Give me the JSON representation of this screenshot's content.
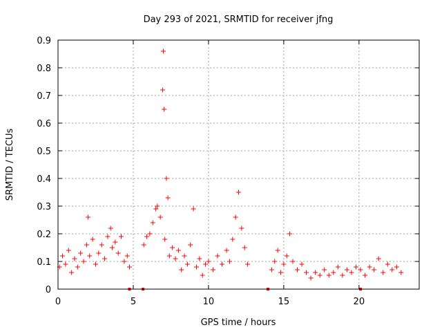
{
  "chart_data": {
    "type": "scatter",
    "title": "Day 293 of 2021, SRMTID for receiver jfng",
    "xlabel": "GPS time / hours",
    "ylabel": "SRMTID / TECUs",
    "xlim": [
      0,
      24
    ],
    "ylim": [
      0,
      0.9
    ],
    "x_ticks": [
      0,
      5,
      10,
      15,
      20
    ],
    "x_tick_labels": [
      "0",
      "5",
      "10",
      "15",
      "20"
    ],
    "y_ticks": [
      0,
      0.1,
      0.2,
      0.3,
      0.4,
      0.5,
      0.6,
      0.7,
      0.8,
      0.9
    ],
    "y_tick_labels": [
      "0",
      "0.1",
      "0.2",
      "0.3",
      "0.4",
      "0.5",
      "0.6",
      "0.7",
      "0.8",
      "0.9"
    ],
    "grid": true,
    "series_color": "#ff0000",
    "marker": "+",
    "x_range_covered": [
      0,
      22.8
    ],
    "data_gaps_hours": [
      [
        4.9,
        5.6
      ],
      [
        12.7,
        14.1
      ]
    ],
    "points": [
      [
        0.1,
        0.08
      ],
      [
        0.3,
        0.12
      ],
      [
        0.5,
        0.09
      ],
      [
        0.7,
        0.14
      ],
      [
        0.9,
        0.06
      ],
      [
        1.1,
        0.11
      ],
      [
        1.3,
        0.08
      ],
      [
        1.5,
        0.13
      ],
      [
        1.7,
        0.1
      ],
      [
        1.9,
        0.16
      ],
      [
        2.0,
        0.26
      ],
      [
        2.1,
        0.12
      ],
      [
        2.3,
        0.18
      ],
      [
        2.5,
        0.09
      ],
      [
        2.7,
        0.13
      ],
      [
        2.9,
        0.16
      ],
      [
        3.1,
        0.11
      ],
      [
        3.3,
        0.19
      ],
      [
        3.5,
        0.22
      ],
      [
        3.6,
        0.15
      ],
      [
        3.8,
        0.17
      ],
      [
        4.0,
        0.13
      ],
      [
        4.2,
        0.19
      ],
      [
        4.4,
        0.1
      ],
      [
        4.6,
        0.12
      ],
      [
        4.75,
        0.08
      ],
      [
        5.7,
        0.16
      ],
      [
        5.9,
        0.19
      ],
      [
        6.1,
        0.2
      ],
      [
        6.3,
        0.24
      ],
      [
        6.5,
        0.29
      ],
      [
        6.6,
        0.3
      ],
      [
        6.8,
        0.26
      ],
      [
        6.95,
        0.72
      ],
      [
        7.0,
        0.86
      ],
      [
        7.05,
        0.65
      ],
      [
        7.1,
        0.18
      ],
      [
        7.2,
        0.4
      ],
      [
        7.3,
        0.33
      ],
      [
        7.4,
        0.12
      ],
      [
        7.6,
        0.15
      ],
      [
        7.8,
        0.11
      ],
      [
        8.0,
        0.14
      ],
      [
        8.2,
        0.07
      ],
      [
        8.4,
        0.12
      ],
      [
        8.6,
        0.09
      ],
      [
        8.8,
        0.16
      ],
      [
        9.0,
        0.29
      ],
      [
        9.2,
        0.08
      ],
      [
        9.4,
        0.11
      ],
      [
        9.6,
        0.05
      ],
      [
        9.8,
        0.09
      ],
      [
        10.0,
        0.1
      ],
      [
        10.3,
        0.07
      ],
      [
        10.6,
        0.12
      ],
      [
        10.9,
        0.09
      ],
      [
        11.2,
        0.14
      ],
      [
        11.4,
        0.1
      ],
      [
        11.6,
        0.18
      ],
      [
        11.8,
        0.26
      ],
      [
        12.0,
        0.35
      ],
      [
        12.2,
        0.22
      ],
      [
        12.4,
        0.15
      ],
      [
        12.6,
        0.09
      ],
      [
        14.2,
        0.07
      ],
      [
        14.4,
        0.1
      ],
      [
        14.6,
        0.14
      ],
      [
        14.8,
        0.06
      ],
      [
        15.0,
        0.09
      ],
      [
        15.2,
        0.12
      ],
      [
        15.4,
        0.2
      ],
      [
        15.6,
        0.1
      ],
      [
        15.9,
        0.07
      ],
      [
        16.2,
        0.09
      ],
      [
        16.5,
        0.06
      ],
      [
        16.8,
        0.04
      ],
      [
        17.1,
        0.06
      ],
      [
        17.4,
        0.05
      ],
      [
        17.7,
        0.07
      ],
      [
        18.0,
        0.05
      ],
      [
        18.3,
        0.06
      ],
      [
        18.6,
        0.08
      ],
      [
        18.9,
        0.05
      ],
      [
        19.2,
        0.07
      ],
      [
        19.5,
        0.06
      ],
      [
        19.8,
        0.08
      ],
      [
        20.1,
        0.07
      ],
      [
        20.4,
        0.05
      ],
      [
        20.7,
        0.08
      ],
      [
        21.0,
        0.07
      ],
      [
        21.3,
        0.11
      ],
      [
        21.6,
        0.06
      ],
      [
        21.9,
        0.09
      ],
      [
        22.2,
        0.07
      ],
      [
        22.5,
        0.08
      ],
      [
        22.8,
        0.06
      ]
    ],
    "zero_level_markers": [
      4.75,
      5.65,
      13.95,
      20.1
    ]
  }
}
